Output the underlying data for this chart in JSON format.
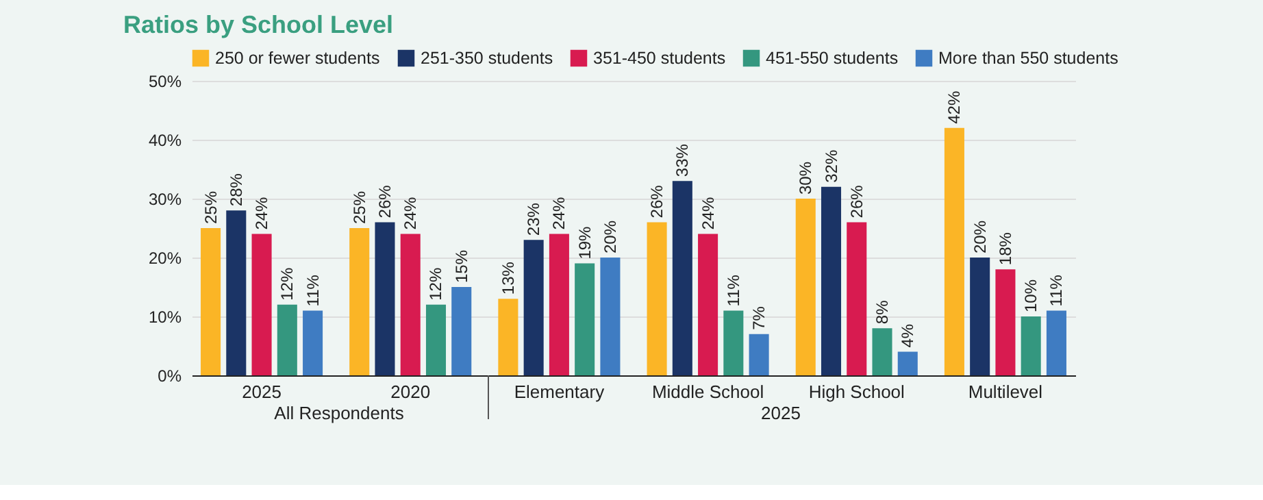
{
  "chart_data": {
    "type": "bar",
    "title": "Ratios by School Level",
    "categories": [
      "2025",
      "2020",
      "Elementary",
      "Middle School",
      "High School",
      "Multilevel"
    ],
    "series": [
      {
        "name": "250 or fewer students",
        "color": "#fbb526",
        "values": [
          25,
          25,
          13,
          26,
          30,
          42
        ],
        "value_labels": [
          "25%",
          "25%",
          "13%",
          "26%",
          "30%",
          "42%"
        ]
      },
      {
        "name": "251-350 students",
        "color": "#1b3466",
        "values": [
          28,
          26,
          23,
          33,
          32,
          20
        ],
        "value_labels": [
          "28%",
          "26%",
          "23%",
          "33%",
          "32%",
          "20%"
        ]
      },
      {
        "name": "351-450 students",
        "color": "#d81b50",
        "values": [
          24,
          24,
          24,
          24,
          26,
          18
        ],
        "value_labels": [
          "24%",
          "24%",
          "24%",
          "24%",
          "26%",
          "18%"
        ]
      },
      {
        "name": "451-550 students",
        "color": "#34977f",
        "values": [
          12,
          12,
          19,
          11,
          8,
          10
        ],
        "value_labels": [
          "12%",
          "12%",
          "19%",
          "11%",
          "8%",
          "10%"
        ]
      },
      {
        "name": "More than 550 students",
        "color": "#3f7cc2",
        "values": [
          11,
          15,
          20,
          7,
          4,
          11
        ],
        "value_labels": [
          "11%",
          "15%",
          "20%",
          "7%",
          "4%",
          "11%"
        ]
      }
    ],
    "ylim": [
      0,
      50
    ],
    "yticks": [
      {
        "value": 0,
        "label": "0%"
      },
      {
        "value": 10,
        "label": "10%"
      },
      {
        "value": 20,
        "label": "20%"
      },
      {
        "value": 30,
        "label": "30%"
      },
      {
        "value": 40,
        "label": "40%"
      },
      {
        "value": 50,
        "label": "50%"
      }
    ],
    "annotations": [
      "All Respondents",
      "2025"
    ],
    "grid": "y",
    "legend": "top"
  }
}
